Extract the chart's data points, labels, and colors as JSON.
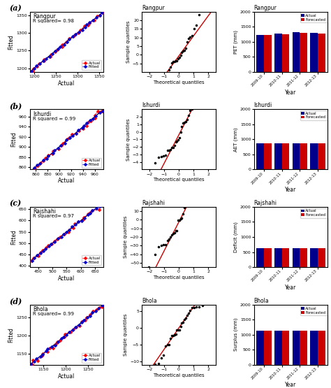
{
  "rows": [
    {
      "label": "(a)",
      "station": "Rangpur",
      "rsq": "R squared= 0.98",
      "scatter_xlim": [
        1190,
        1360
      ],
      "scatter_ylim": [
        1190,
        1360
      ],
      "scatter_xticks": [
        1200,
        1250,
        1300,
        1350
      ],
      "scatter_yticks": [
        1200,
        1250,
        1300,
        1350
      ],
      "scatter_xlabel": "Actual",
      "scatter_ylabel": "Fitted",
      "qq_title": "Rangpur",
      "qq_xlim": [
        -2.5,
        2.5
      ],
      "qq_ylim": [
        -10,
        25
      ],
      "qq_yticks": [
        -5,
        0,
        5,
        10,
        15,
        20
      ],
      "bar_title": "Rangpur",
      "bar_ylabel": "PET (mm)",
      "bar_ylim": [
        0,
        2000
      ],
      "bar_yticks": [
        0,
        500,
        1000,
        1500,
        2000
      ],
      "bar_actual": [
        1230,
        1270,
        1310,
        1290
      ],
      "bar_forecasted": [
        1220,
        1260,
        1300,
        1280
      ],
      "years": [
        "2009-10",
        "2010-11",
        "2011-12",
        "2012-13"
      ]
    },
    {
      "label": "(b)",
      "station": "Ishurdi",
      "rsq": "R squared = 0.99",
      "scatter_xlim": [
        850,
        975
      ],
      "scatter_ylim": [
        855,
        975
      ],
      "scatter_xticks": [
        860,
        880,
        900,
        920,
        940,
        960
      ],
      "scatter_yticks": [
        860,
        880,
        900,
        920,
        940,
        960
      ],
      "scatter_xlabel": "Actual",
      "scatter_ylabel": "Fitted",
      "qq_title": "Ishurdi",
      "qq_xlim": [
        -2.5,
        2.5
      ],
      "qq_ylim": [
        -5,
        3
      ],
      "qq_yticks": [
        -4,
        -3,
        -2,
        -1,
        0,
        1,
        2
      ],
      "bar_title": "Ishurdi",
      "bar_ylabel": "AET (mm)",
      "bar_ylim": [
        0,
        2000
      ],
      "bar_yticks": [
        0,
        500,
        1000,
        1500,
        2000
      ],
      "bar_actual": [
        860,
        860,
        860,
        860
      ],
      "bar_forecasted": [
        858,
        858,
        858,
        858
      ],
      "years": [
        "2009-10",
        "2010-11",
        "2011-12",
        "2012-13"
      ]
    },
    {
      "label": "(c)",
      "station": "Rajshahi",
      "rsq": "R squared= 0.97",
      "scatter_xlim": [
        420,
        680
      ],
      "scatter_ylim": [
        395,
        660
      ],
      "scatter_xticks": [
        450,
        500,
        550,
        600,
        650
      ],
      "scatter_yticks": [
        400,
        450,
        500,
        550,
        600,
        650
      ],
      "scatter_xlabel": "Actual",
      "scatter_ylabel": "Fitted",
      "qq_title": "Rajshahi",
      "qq_xlim": [
        -2.5,
        2.5
      ],
      "qq_ylim": [
        -55,
        15
      ],
      "qq_yticks": [
        -50,
        -40,
        -30,
        -20,
        -10,
        0,
        10
      ],
      "bar_title": "Rajshahi",
      "bar_ylabel": "Deficit (mm)",
      "bar_ylim": [
        0,
        2000
      ],
      "bar_yticks": [
        0,
        500,
        1000,
        1500,
        2000
      ],
      "bar_actual": [
        630,
        630,
        630,
        630
      ],
      "bar_forecasted": [
        625,
        625,
        625,
        625
      ],
      "years": [
        "2009-10",
        "2010-11",
        "2011-12",
        "2012-13"
      ]
    },
    {
      "label": "(d)",
      "station": "Bhola",
      "rsq": "R squared= 0.99",
      "scatter_xlim": [
        1120,
        1285
      ],
      "scatter_ylim": [
        1120,
        1285
      ],
      "scatter_xticks": [
        1150,
        1200,
        1250
      ],
      "scatter_yticks": [
        1150,
        1200,
        1250
      ],
      "scatter_xlabel": "Actual",
      "scatter_ylabel": "Fitted",
      "qq_title": "Bhola",
      "qq_xlim": [
        -2.5,
        2.5
      ],
      "qq_ylim": [
        -11,
        7
      ],
      "qq_yticks": [
        -10,
        -5,
        0,
        5
      ],
      "bar_title": "Bhola",
      "bar_ylabel": "Surplus (mm)",
      "bar_ylim": [
        0,
        2000
      ],
      "bar_yticks": [
        0,
        500,
        1000,
        1500,
        2000
      ],
      "bar_actual": [
        1130,
        1130,
        1130,
        1130
      ],
      "bar_forecasted": [
        1125,
        1125,
        1125,
        1125
      ],
      "years": [
        "2009-10",
        "2010-11",
        "2011-12",
        "2012-13"
      ]
    }
  ],
  "actual_color": "#FF0000",
  "fitted_color": "#0000CC",
  "bar_actual_color": "#00008B",
  "bar_forecast_color": "#CC0000",
  "qq_line_color": "#CC0000",
  "scatter_line_color": "#000000",
  "background_color": "#FFFFFF"
}
